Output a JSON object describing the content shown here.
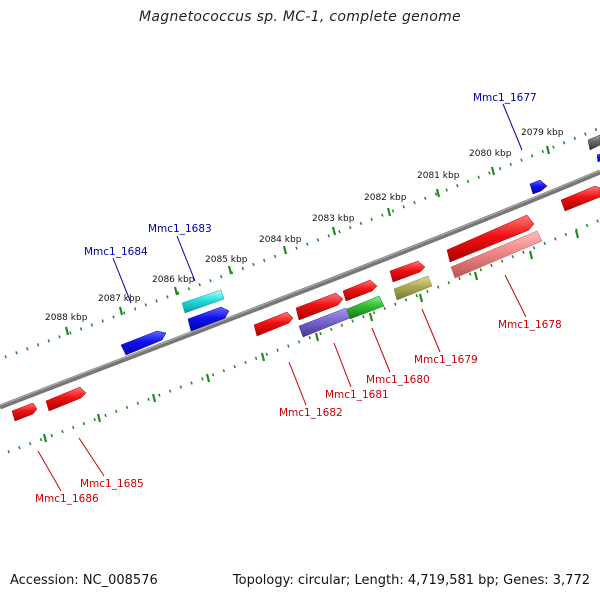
{
  "title": "Magnetococcus sp. MC-1, complete genome",
  "footer": {
    "accession": "Accession: NC_008576",
    "summary": "Topology: circular; Length: 4,719,581 bp; Genes: 3,772"
  },
  "colors": {
    "forward": "#ee1111",
    "reverse": "#1111ee",
    "label_forward": "#cc0000",
    "label_reverse": "#0000aa",
    "backbone": "#777777",
    "tick": "#228822"
  },
  "kbp_ticks": [
    "2079 kbp",
    "2080 kbp",
    "2081 kbp",
    "2082 kbp",
    "2083 kbp",
    "2084 kbp",
    "2085 kbp",
    "2086 kbp",
    "2087 kbp",
    "2088 kbp"
  ],
  "gene_labels_reverse": [
    "Mmc1_1677",
    "Mmc1_1683",
    "Mmc1_1684"
  ],
  "gene_labels_forward": [
    "Mmc1_1678",
    "Mmc1_1679",
    "Mmc1_1680",
    "Mmc1_1681",
    "Mmc1_1682",
    "Mmc1_1685",
    "Mmc1_1686"
  ],
  "feature_colors": {
    "cyan": "#22dddd",
    "purple": "#7766cc",
    "green": "#33bb33",
    "olive": "#aaaa55",
    "pink": "#ee8888",
    "gray": "#666666"
  }
}
